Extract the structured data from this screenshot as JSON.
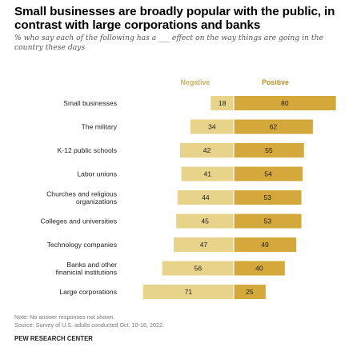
{
  "title": "Small businesses are broadly popular with the public, in contrast with large corporations and banks",
  "subtitle": "% who say each of the following has a ___ effect on the way things are going in the country these days",
  "note": "Note: No answer responses not shown.",
  "source": "Source: Survey of U.S. adults conducted Oct. 10-16, 2022.",
  "org": "PEW RESEARCH CENTER",
  "chart_data": {
    "type": "bar",
    "orientation": "diverging-horizontal",
    "categories": [
      [
        "Small businesses"
      ],
      [
        "The military"
      ],
      [
        "K-12 public schools"
      ],
      [
        "Labor unions"
      ],
      [
        "Churches and religious",
        "organizations"
      ],
      [
        "Colleges and universities"
      ],
      [
        "Technology companies"
      ],
      [
        "Banks and other",
        "finanicial institutions"
      ],
      [
        "Large corporations"
      ]
    ],
    "series": [
      {
        "name": "Negative",
        "color": "#e8d38a",
        "values": [
          18,
          34,
          42,
          41,
          44,
          45,
          47,
          56,
          71
        ]
      },
      {
        "name": "Positive",
        "color": "#d4a83a",
        "values": [
          80,
          62,
          55,
          54,
          53,
          53,
          49,
          40,
          25
        ]
      }
    ]
  }
}
